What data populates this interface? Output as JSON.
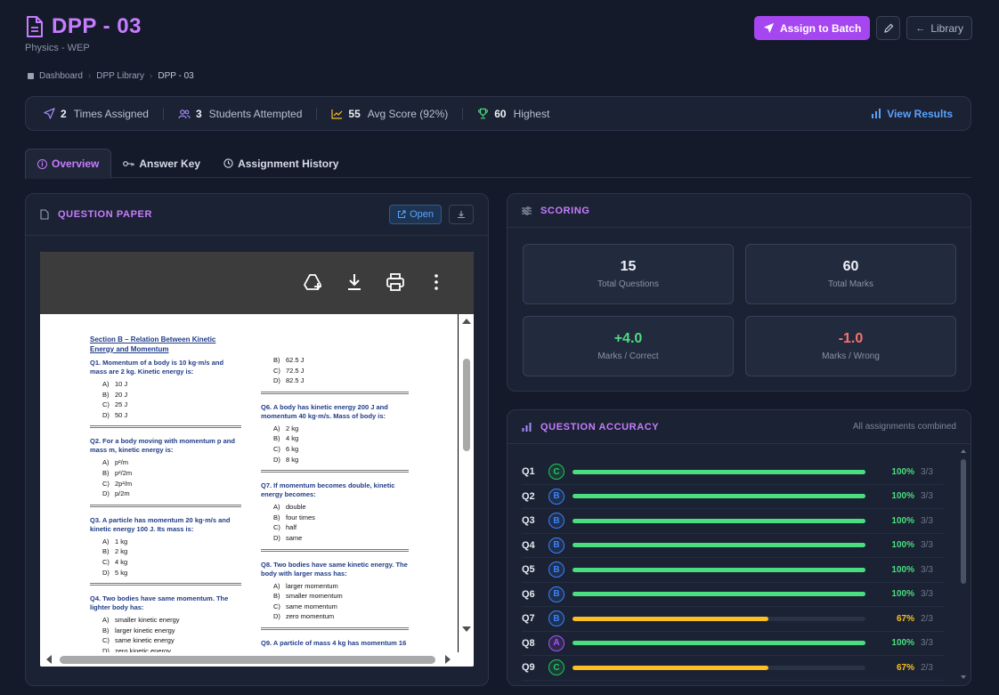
{
  "header": {
    "title": "DPP - 03",
    "subtitle": "Physics - WEP",
    "assign_label": "Assign to Batch",
    "library_label": "Library"
  },
  "breadcrumb": [
    "Dashboard",
    "DPP Library",
    "DPP - 03"
  ],
  "stats": {
    "times_assigned": "2",
    "times_assigned_label": "Times Assigned",
    "students_attempted": "3",
    "students_attempted_label": "Students Attempted",
    "avg_score": "55",
    "avg_score_label": "Avg Score (92%)",
    "highest": "60",
    "highest_label": "Highest",
    "view_results": "View Results"
  },
  "tabs": [
    "Overview",
    "Answer Key",
    "Assignment History"
  ],
  "question_paper": {
    "title": "QUESTION PAPER",
    "open_label": "Open",
    "section_title": "Section B – Relation Between Kinetic Energy and Momentum",
    "col1": [
      {
        "q": "Q1. Momentum of a body is 10 kg·m/s and mass are 2 kg. Kinetic energy is:",
        "opts": [
          [
            "A)",
            "10 J"
          ],
          [
            "B)",
            "20 J"
          ],
          [
            "C)",
            "25 J"
          ],
          [
            "D)",
            "50 J"
          ]
        ]
      },
      {
        "q": "Q2. For a body moving with momentum p and mass m, kinetic energy is:",
        "opts": [
          [
            "A)",
            "p²/m"
          ],
          [
            "B)",
            "p²/2m"
          ],
          [
            "C)",
            "2p²/m"
          ],
          [
            "D)",
            "p/2m"
          ]
        ]
      },
      {
        "q": "Q3. A particle has momentum 20 kg·m/s and kinetic energy 100 J. Its mass is:",
        "opts": [
          [
            "A)",
            "1 kg"
          ],
          [
            "B)",
            "2 kg"
          ],
          [
            "C)",
            "4 kg"
          ],
          [
            "D)",
            "5 kg"
          ]
        ]
      },
      {
        "q": "Q4. Two bodies have same momentum. The lighter body has:",
        "opts": [
          [
            "A)",
            "smaller kinetic energy"
          ],
          [
            "B)",
            "larger kinetic energy"
          ],
          [
            "C)",
            "same kinetic energy"
          ],
          [
            "D)",
            "zero kinetic energy"
          ]
        ]
      }
    ],
    "col2_top_opts": [
      [
        "B)",
        "62.5 J"
      ],
      [
        "C)",
        "72.5 J"
      ],
      [
        "D)",
        "82.5 J"
      ]
    ],
    "col2": [
      {
        "q": "Q6. A body has kinetic energy 200 J and momentum 40 kg·m/s. Mass of body is:",
        "opts": [
          [
            "A)",
            "2 kg"
          ],
          [
            "B)",
            "4 kg"
          ],
          [
            "C)",
            "6 kg"
          ],
          [
            "D)",
            "8 kg"
          ]
        ]
      },
      {
        "q": "Q7. If momentum becomes double, kinetic energy becomes:",
        "opts": [
          [
            "A)",
            "double"
          ],
          [
            "B)",
            "four times"
          ],
          [
            "C)",
            "half"
          ],
          [
            "D)",
            "same"
          ]
        ]
      },
      {
        "q": "Q8. Two bodies have same kinetic energy. The body with larger mass has:",
        "opts": [
          [
            "A)",
            "larger momentum"
          ],
          [
            "B)",
            "smaller momentum"
          ],
          [
            "C)",
            "same momentum"
          ],
          [
            "D)",
            "zero momentum"
          ]
        ]
      },
      {
        "q": "Q9. A particle of mass 4 kg has momentum 16",
        "opts": []
      }
    ]
  },
  "scoring": {
    "title": "SCORING",
    "cards": [
      {
        "value": "15",
        "label": "Total Questions",
        "tone": "neutral"
      },
      {
        "value": "60",
        "label": "Total Marks",
        "tone": "neutral"
      },
      {
        "value": "+4.0",
        "label": "Marks / Correct",
        "tone": "pos"
      },
      {
        "value": "-1.0",
        "label": "Marks / Wrong",
        "tone": "neg"
      }
    ]
  },
  "accuracy": {
    "title": "QUESTION ACCURACY",
    "subtitle": "All assignments combined",
    "rows": [
      {
        "q": "Q1",
        "ans": "C",
        "pct": 100,
        "pct_label": "100%",
        "count": "3/3"
      },
      {
        "q": "Q2",
        "ans": "B",
        "pct": 100,
        "pct_label": "100%",
        "count": "3/3"
      },
      {
        "q": "Q3",
        "ans": "B",
        "pct": 100,
        "pct_label": "100%",
        "count": "3/3"
      },
      {
        "q": "Q4",
        "ans": "B",
        "pct": 100,
        "pct_label": "100%",
        "count": "3/3"
      },
      {
        "q": "Q5",
        "ans": "B",
        "pct": 100,
        "pct_label": "100%",
        "count": "3/3"
      },
      {
        "q": "Q6",
        "ans": "B",
        "pct": 100,
        "pct_label": "100%",
        "count": "3/3"
      },
      {
        "q": "Q7",
        "ans": "B",
        "pct": 67,
        "pct_label": "67%",
        "count": "2/3"
      },
      {
        "q": "Q8",
        "ans": "A",
        "pct": 100,
        "pct_label": "100%",
        "count": "3/3"
      },
      {
        "q": "Q9",
        "ans": "C",
        "pct": 67,
        "pct_label": "67%",
        "count": "2/3"
      }
    ],
    "colors": {
      "full": "#4ade80",
      "partial": "#fbbf24",
      "A": "#a855f7",
      "B": "#3b82f6",
      "C": "#22c55e"
    }
  }
}
